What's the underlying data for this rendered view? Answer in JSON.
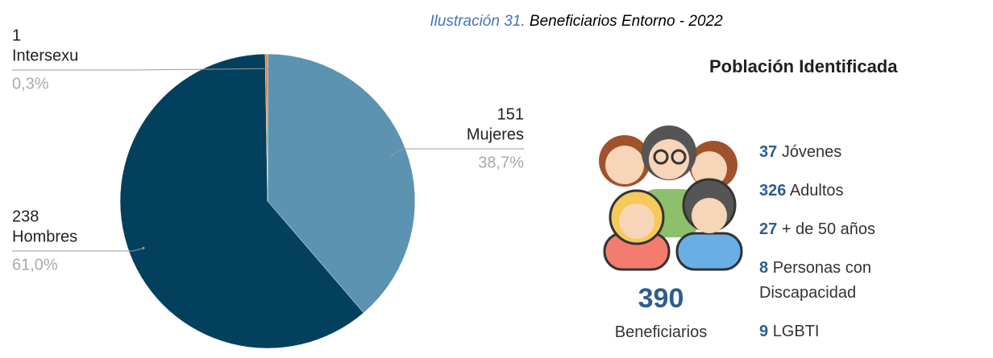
{
  "chart_data": {
    "type": "pie",
    "caption_label": "Ilustración 31.",
    "title": "Beneficiarios Entorno - 2022",
    "categories": [
      "Mujeres",
      "Hombres",
      "Intersexu"
    ],
    "values": [
      151,
      238,
      1
    ],
    "shares": [
      38.7,
      61.0,
      0.3
    ],
    "share_labels": [
      "38,7%",
      "61,0%",
      "0,3%"
    ],
    "colors": [
      "#5b93b0",
      "#03405e",
      "#e8772e"
    ]
  },
  "infographic": {
    "title": "Población Identificada",
    "total": 390,
    "total_label": "Beneficiarios",
    "groups": [
      {
        "count": 37,
        "label": "Jóvenes"
      },
      {
        "count": 326,
        "label": "Adultos"
      },
      {
        "count": 27,
        "label": "+ de 50 años"
      },
      {
        "count": 8,
        "label": "Personas con Discapacidad"
      },
      {
        "count": 9,
        "label": "LGBTI"
      }
    ]
  }
}
